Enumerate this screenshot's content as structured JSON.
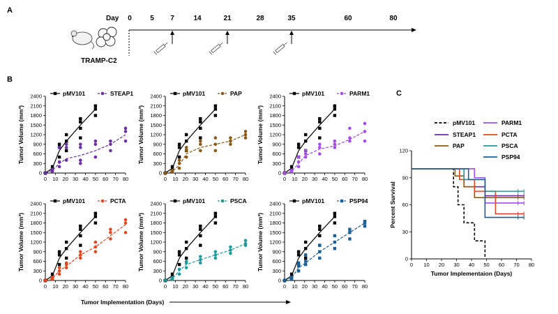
{
  "panels": {
    "a": "A",
    "b": "B",
    "c": "C"
  },
  "timeline": {
    "day_label": "Day",
    "days": [
      "0",
      "5",
      "7",
      "14",
      "21",
      "28",
      "35",
      "60",
      "80"
    ],
    "tumor_label": "TRAMP-C2",
    "injection_days": [
      "7",
      "21",
      "35"
    ]
  },
  "growth_x_label": "Tumor Implementation (Days)",
  "growth_y_label": "Tumor Volume (mm³)",
  "colors": {
    "pMV101": "#000000",
    "STEAP1": "#6a2ea6",
    "PAP": "#8a5a14",
    "PARM1": "#a64ce8",
    "PCTA": "#e5461f",
    "PSCA": "#1e9a9a",
    "PSP94": "#1a5f96"
  },
  "chart_data": [
    {
      "type": "scatter",
      "title": "",
      "xlabel": "Tumor Implementation (Days)",
      "ylabel": "Tumor Volume (mm³)",
      "xlim": [
        0,
        80
      ],
      "ylim": [
        0,
        2400
      ],
      "xticks": [
        "0",
        "10",
        "20",
        "30",
        "40",
        "50",
        "60",
        "70",
        "80"
      ],
      "yticks": [
        "0",
        "300",
        "600",
        "900",
        "1200",
        "1500",
        "1800",
        "2100",
        "2400"
      ],
      "legend": "top",
      "series": [
        {
          "name": "pMV101",
          "style": "solid",
          "marker": "square",
          "colorKey": "pMV101",
          "x": [
            0,
            7,
            14,
            21,
            35,
            50
          ],
          "y": [
            0,
            150,
            700,
            1000,
            1500,
            2000
          ],
          "points": [
            [
              0,
              0
            ],
            [
              0,
              0
            ],
            [
              7,
              100
            ],
            [
              7,
              200
            ],
            [
              14,
              500
            ],
            [
              14,
              800
            ],
            [
              14,
              900
            ],
            [
              21,
              700
            ],
            [
              21,
              1000
            ],
            [
              21,
              1200
            ],
            [
              35,
              1100
            ],
            [
              35,
              1400
            ],
            [
              35,
              1600
            ],
            [
              35,
              1700
            ],
            [
              50,
              1800
            ],
            [
              50,
              2000
            ],
            [
              50,
              2100
            ]
          ]
        },
        {
          "name": "STEAP1",
          "style": "dashed",
          "marker": "circle",
          "colorKey": "STEAP1",
          "x": [
            0,
            7,
            14,
            21,
            35,
            50,
            65,
            80
          ],
          "y": [
            0,
            80,
            300,
            450,
            550,
            700,
            900,
            1200
          ],
          "points": [
            [
              0,
              0
            ],
            [
              7,
              50
            ],
            [
              7,
              120
            ],
            [
              14,
              200
            ],
            [
              14,
              350
            ],
            [
              14,
              800
            ],
            [
              21,
              400
            ],
            [
              21,
              800
            ],
            [
              21,
              900
            ],
            [
              35,
              300
            ],
            [
              35,
              400
            ],
            [
              35,
              800
            ],
            [
              35,
              900
            ],
            [
              50,
              500
            ],
            [
              50,
              900
            ],
            [
              50,
              1000
            ],
            [
              65,
              700
            ],
            [
              65,
              900
            ],
            [
              65,
              1000
            ],
            [
              80,
              1000
            ],
            [
              80,
              1300
            ],
            [
              80,
              1400
            ]
          ]
        },
        {
          "name": "PAP",
          "style": "dashed",
          "marker": "circle",
          "colorKey": "PAP",
          "x": [
            0,
            7,
            14,
            21,
            35,
            50,
            65,
            80
          ],
          "y": [
            0,
            50,
            250,
            600,
            800,
            900,
            1000,
            1200
          ],
          "points": [
            [
              0,
              0
            ],
            [
              7,
              30
            ],
            [
              7,
              80
            ],
            [
              14,
              150
            ],
            [
              14,
              300
            ],
            [
              14,
              400
            ],
            [
              21,
              500
            ],
            [
              21,
              700
            ],
            [
              21,
              800
            ],
            [
              35,
              700
            ],
            [
              35,
              900
            ],
            [
              35,
              1000
            ],
            [
              50,
              700
            ],
            [
              50,
              900
            ],
            [
              50,
              1100
            ],
            [
              65,
              900
            ],
            [
              65,
              1000
            ],
            [
              65,
              1100
            ],
            [
              80,
              1100
            ],
            [
              80,
              1200
            ],
            [
              80,
              1300
            ]
          ]
        },
        {
          "name": "PARM1",
          "style": "dashed",
          "marker": "circle",
          "colorKey": "PARM1",
          "x": [
            0,
            7,
            14,
            21,
            35,
            50,
            65,
            80
          ],
          "y": [
            0,
            50,
            300,
            550,
            750,
            850,
            1050,
            1300
          ],
          "points": [
            [
              0,
              0
            ],
            [
              7,
              40
            ],
            [
              7,
              90
            ],
            [
              14,
              200
            ],
            [
              14,
              350
            ],
            [
              14,
              500
            ],
            [
              21,
              500
            ],
            [
              21,
              600
            ],
            [
              21,
              700
            ],
            [
              35,
              600
            ],
            [
              35,
              800
            ],
            [
              35,
              900
            ],
            [
              50,
              800
            ],
            [
              50,
              900
            ],
            [
              50,
              1000
            ],
            [
              65,
              1000
            ],
            [
              65,
              1100
            ],
            [
              65,
              1400
            ],
            [
              80,
              1000
            ],
            [
              80,
              1300
            ],
            [
              80,
              1550
            ]
          ]
        },
        {
          "name": "PCTA",
          "style": "dashed",
          "marker": "circle",
          "colorKey": "PCTA",
          "x": [
            0,
            7,
            14,
            21,
            35,
            50,
            65,
            80
          ],
          "y": [
            0,
            60,
            300,
            450,
            800,
            1050,
            1400,
            1750
          ],
          "points": [
            [
              0,
              0
            ],
            [
              7,
              40
            ],
            [
              7,
              100
            ],
            [
              14,
              200
            ],
            [
              14,
              300
            ],
            [
              14,
              400
            ],
            [
              21,
              400
            ],
            [
              21,
              500
            ],
            [
              21,
              550
            ],
            [
              35,
              700
            ],
            [
              35,
              800
            ],
            [
              35,
              900
            ],
            [
              50,
              900
            ],
            [
              50,
              1050
            ],
            [
              50,
              1200
            ],
            [
              65,
              1300
            ],
            [
              65,
              1500
            ],
            [
              65,
              1600
            ],
            [
              80,
              1500
            ],
            [
              80,
              1800
            ],
            [
              80,
              1900
            ]
          ]
        },
        {
          "name": "PSCA",
          "style": "dashed",
          "marker": "circle",
          "colorKey": "PSCA",
          "x": [
            0,
            7,
            14,
            21,
            35,
            50,
            65,
            80
          ],
          "y": [
            0,
            60,
            300,
            500,
            650,
            800,
            950,
            1150
          ],
          "points": [
            [
              0,
              0
            ],
            [
              7,
              40
            ],
            [
              7,
              90
            ],
            [
              14,
              200
            ],
            [
              14,
              350
            ],
            [
              21,
              400
            ],
            [
              21,
              550
            ],
            [
              21,
              600
            ],
            [
              35,
              550
            ],
            [
              35,
              650
            ],
            [
              35,
              750
            ],
            [
              50,
              700
            ],
            [
              50,
              800
            ],
            [
              50,
              900
            ],
            [
              65,
              850
            ],
            [
              65,
              950
            ],
            [
              65,
              1050
            ],
            [
              80,
              1100
            ],
            [
              80,
              1150
            ],
            [
              80,
              1250
            ]
          ]
        },
        {
          "name": "PSP94",
          "style": "dashed",
          "marker": "square",
          "colorKey": "PSP94",
          "x": [
            0,
            7,
            14,
            21,
            35,
            50,
            65,
            80
          ],
          "y": [
            0,
            80,
            400,
            550,
            900,
            1200,
            1500,
            1800
          ],
          "points": [
            [
              0,
              0
            ],
            [
              7,
              50
            ],
            [
              7,
              100
            ],
            [
              14,
              300
            ],
            [
              14,
              450
            ],
            [
              14,
              550
            ],
            [
              21,
              500
            ],
            [
              21,
              600
            ],
            [
              21,
              800
            ],
            [
              35,
              700
            ],
            [
              35,
              900
            ],
            [
              35,
              1100
            ],
            [
              50,
              1000
            ],
            [
              50,
              1200
            ],
            [
              50,
              1400
            ],
            [
              65,
              1300
            ],
            [
              65,
              1500
            ],
            [
              65,
              1600
            ],
            [
              80,
              1700
            ],
            [
              80,
              1800
            ],
            [
              80,
              1850
            ]
          ]
        }
      ],
      "subplots": [
        {
          "control": "pMV101",
          "vaccine": "STEAP1"
        },
        {
          "control": "pMV101",
          "vaccine": "PAP"
        },
        {
          "control": "pMV101",
          "vaccine": "PARM1"
        },
        {
          "control": "pMV101",
          "vaccine": "PCTA"
        },
        {
          "control": "pMV101",
          "vaccine": "PSCA"
        },
        {
          "control": "pMV101",
          "vaccine": "PSP94"
        }
      ]
    },
    {
      "type": "line",
      "title": "",
      "xlabel": "Tumor Implementaion (Days)",
      "ylabel": "Percent Survival",
      "xlim": [
        0,
        80
      ],
      "ylim": [
        0,
        120
      ],
      "xticks": [
        "0",
        "10",
        "20",
        "30",
        "40",
        "50",
        "60",
        "70",
        "80"
      ],
      "yticks": [
        "0",
        "30",
        "60",
        "90",
        "120"
      ],
      "legend": "top-left",
      "series": [
        {
          "name": "pMV101",
          "colorKey": "pMV101",
          "style": "dashed",
          "steps": [
            [
              0,
              100
            ],
            [
              28,
              100
            ],
            [
              28,
              80
            ],
            [
              31,
              80
            ],
            [
              31,
              60
            ],
            [
              35,
              60
            ],
            [
              35,
              40
            ],
            [
              42,
              40
            ],
            [
              42,
              20
            ],
            [
              49,
              20
            ],
            [
              49,
              0
            ]
          ]
        },
        {
          "name": "STEAP1",
          "colorKey": "STEAP1",
          "style": "solid",
          "steps": [
            [
              0,
              100
            ],
            [
              35,
              100
            ],
            [
              35,
              80
            ],
            [
              49,
              80
            ],
            [
              49,
              70
            ],
            [
              75,
              70
            ]
          ]
        },
        {
          "name": "PAP",
          "colorKey": "PAP",
          "style": "solid",
          "steps": [
            [
              0,
              100
            ],
            [
              29,
              100
            ],
            [
              29,
              92
            ],
            [
              35,
              92
            ],
            [
              35,
              80
            ],
            [
              42,
              80
            ],
            [
              42,
              68
            ],
            [
              75,
              68
            ]
          ]
        },
        {
          "name": "PARM1",
          "colorKey": "PARM1",
          "style": "solid",
          "steps": [
            [
              0,
              100
            ],
            [
              42,
              100
            ],
            [
              42,
              90
            ],
            [
              49,
              90
            ],
            [
              49,
              62
            ],
            [
              75,
              62
            ]
          ]
        },
        {
          "name": "PCTA",
          "colorKey": "PCTA",
          "style": "solid",
          "steps": [
            [
              0,
              100
            ],
            [
              32,
              100
            ],
            [
              32,
              88
            ],
            [
              42,
              88
            ],
            [
              42,
              75
            ],
            [
              56,
              75
            ],
            [
              56,
              50
            ],
            [
              75,
              50
            ]
          ]
        },
        {
          "name": "PSCA",
          "colorKey": "PSCA",
          "style": "solid",
          "steps": [
            [
              0,
              100
            ],
            [
              35,
              100
            ],
            [
              35,
              88
            ],
            [
              49,
              88
            ],
            [
              49,
              75
            ],
            [
              75,
              75
            ]
          ]
        },
        {
          "name": "PSP94",
          "colorKey": "PSP94",
          "style": "solid",
          "steps": [
            [
              0,
              100
            ],
            [
              38,
              100
            ],
            [
              38,
              88
            ],
            [
              49,
              88
            ],
            [
              49,
              46
            ],
            [
              75,
              46
            ]
          ]
        }
      ]
    }
  ]
}
